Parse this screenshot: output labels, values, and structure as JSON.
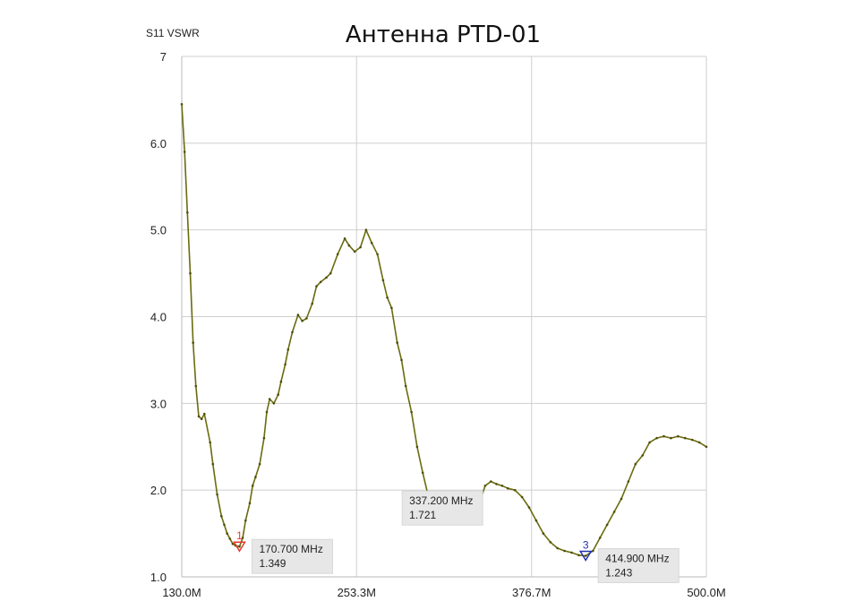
{
  "chart_data": {
    "type": "line",
    "title": "Антенна PTD-01",
    "ylabel": "S11 VSWR",
    "xlim": [
      130.0,
      500.0
    ],
    "ylim": [
      1.0,
      7.0
    ],
    "x_ticks": [
      {
        "value": 130.0,
        "label": "130.0M"
      },
      {
        "value": 253.3,
        "label": "253.3M"
      },
      {
        "value": 376.7,
        "label": "376.7M"
      },
      {
        "value": 500.0,
        "label": "500.0M"
      }
    ],
    "y_ticks": [
      {
        "value": 1.0,
        "label": "1.0"
      },
      {
        "value": 2.0,
        "label": "2.0"
      },
      {
        "value": 3.0,
        "label": "3.0"
      },
      {
        "value": 4.0,
        "label": "4.0"
      },
      {
        "value": 5.0,
        "label": "5.0"
      },
      {
        "value": 6.0,
        "label": "6.0"
      },
      {
        "value": 7.0,
        "label": "7"
      }
    ],
    "grid": true,
    "line_color": "#6b6b0e",
    "series": [
      {
        "x": [
          130,
          132,
          134,
          136,
          138,
          140,
          142,
          144,
          146,
          150,
          152,
          155,
          158,
          160,
          162,
          164,
          166,
          168,
          170.7,
          173,
          175,
          178,
          180,
          182,
          185,
          188,
          190,
          192,
          195,
          198,
          200,
          203,
          205,
          208,
          212,
          215,
          218,
          222,
          225,
          228,
          232,
          235,
          240,
          245,
          248,
          252,
          256,
          260,
          264,
          268,
          272,
          275,
          278,
          282,
          285,
          288,
          292,
          296,
          300,
          305,
          310,
          315,
          320,
          325,
          330,
          335,
          337.2,
          340,
          344,
          348,
          352,
          356,
          360,
          365,
          370,
          375,
          380,
          385,
          390,
          395,
          400,
          405,
          410,
          414.9,
          420,
          425,
          430,
          435,
          440,
          445,
          450,
          455,
          460,
          465,
          470,
          475,
          480,
          485,
          490,
          495,
          500
        ],
        "y": [
          6.45,
          5.9,
          5.2,
          4.5,
          3.7,
          3.2,
          2.85,
          2.82,
          2.88,
          2.55,
          2.3,
          1.95,
          1.7,
          1.6,
          1.5,
          1.44,
          1.38,
          1.36,
          1.349,
          1.45,
          1.65,
          1.85,
          2.05,
          2.15,
          2.3,
          2.6,
          2.9,
          3.05,
          3.0,
          3.1,
          3.25,
          3.45,
          3.62,
          3.82,
          4.02,
          3.95,
          3.98,
          4.15,
          4.35,
          4.4,
          4.45,
          4.5,
          4.72,
          4.9,
          4.82,
          4.75,
          4.8,
          5.0,
          4.85,
          4.72,
          4.42,
          4.22,
          4.1,
          3.7,
          3.5,
          3.2,
          2.9,
          2.5,
          2.2,
          1.85,
          1.75,
          1.72,
          1.85,
          1.95,
          1.9,
          1.78,
          1.721,
          1.85,
          2.05,
          2.1,
          2.07,
          2.05,
          2.02,
          2.0,
          1.92,
          1.8,
          1.65,
          1.5,
          1.4,
          1.33,
          1.3,
          1.28,
          1.25,
          1.243,
          1.3,
          1.45,
          1.6,
          1.75,
          1.9,
          2.1,
          2.3,
          2.4,
          2.55,
          2.6,
          2.62,
          2.6,
          2.62,
          2.6,
          2.58,
          2.55,
          2.5
        ]
      }
    ],
    "markers": [
      {
        "id": "1",
        "x": 170.7,
        "y": 1.349,
        "freq_label": "170.700 MHz",
        "value_label": "1.349",
        "color": "#e8352a",
        "label_side": "right"
      },
      {
        "id": "2",
        "x": 337.2,
        "y": 1.721,
        "freq_label": "337.200 MHz",
        "value_label": "1.721",
        "color": "#3fd64a",
        "label_side": "left"
      },
      {
        "id": "3",
        "x": 414.9,
        "y": 1.243,
        "freq_label": "414.900 MHz",
        "value_label": "1.243",
        "color": "#2030b0",
        "label_side": "right"
      }
    ]
  }
}
